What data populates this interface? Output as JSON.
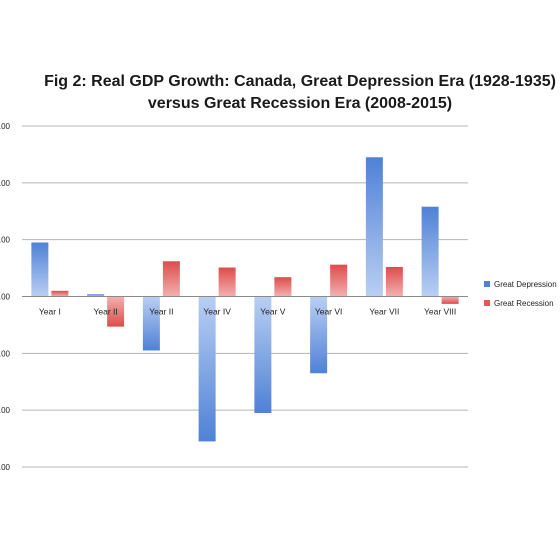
{
  "chart_data": {
    "type": "bar",
    "title_lines": [
      "Fig 2: Real GDP Growth: Canada, Great Depression Era (1928-1935)",
      "versus Great Recession Era (2008-2015)"
    ],
    "categories": [
      "Year I",
      "Year II",
      "Year II",
      "Year IV",
      "Year V",
      "Year VI",
      "Year VII",
      "Year VIII"
    ],
    "series": [
      {
        "name": "Great Depression",
        "color": "#4f81d6",
        "values": [
          9.5,
          0.4,
          -9.5,
          -25.5,
          -20.5,
          -13.5,
          24.5,
          15.8
        ]
      },
      {
        "name": "Great Recession",
        "color": "#e05a5a",
        "values": [
          1.0,
          -5.3,
          6.2,
          5.1,
          3.4,
          5.6,
          5.2,
          -1.3
        ]
      }
    ],
    "ylim": [
      -30,
      30
    ],
    "yticks": [
      -30,
      -20,
      -10,
      0,
      10,
      20,
      30
    ],
    "ytick_labels": [
      ".00",
      ".00",
      ".00",
      ".00",
      ".00",
      ".00",
      ".00"
    ],
    "grid": true,
    "legend": "right"
  }
}
